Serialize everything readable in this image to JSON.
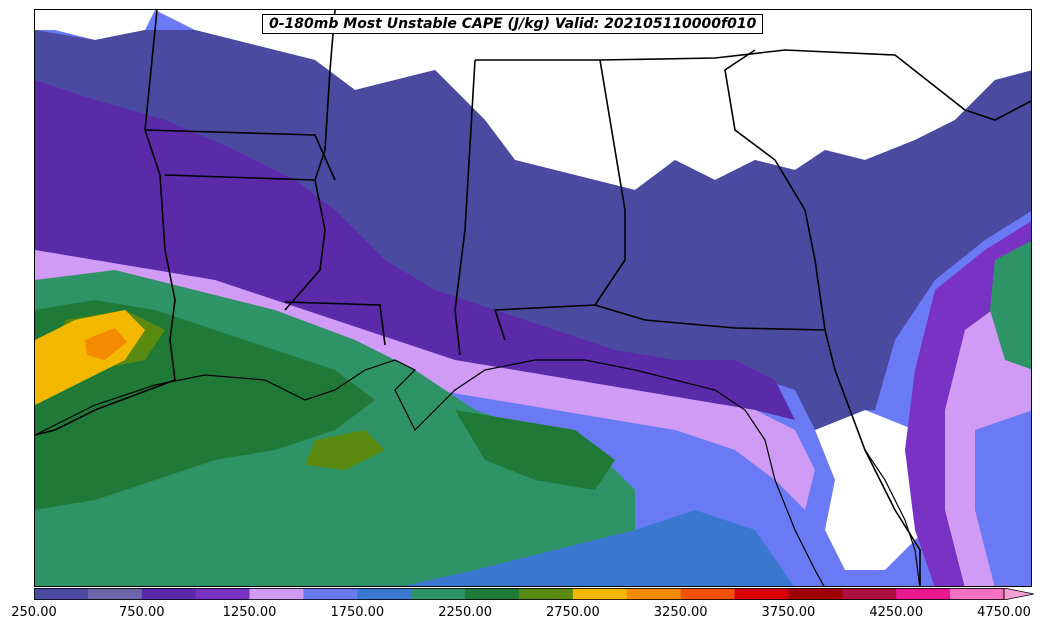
{
  "title": "0-180mb Most Unstable CAPE (J/kg) Valid: 202105110000f010",
  "colorbar": {
    "levels": [
      250,
      500,
      750,
      1000,
      1250,
      1500,
      1750,
      2000,
      2250,
      2500,
      2750,
      3000,
      3250,
      3500,
      3750,
      4000,
      4250,
      4500,
      4750
    ],
    "colors": [
      "#4a4aa0",
      "#6a66a8",
      "#5a2aa8",
      "#7a32c4",
      "#d09bf4",
      "#6a7af4",
      "#3a78d0",
      "#2e9468",
      "#1e7a36",
      "#5a8a10",
      "#f4b800",
      "#f48a00",
      "#f05000",
      "#d80000",
      "#a00000",
      "#b01040",
      "#e81890",
      "#f470c0"
    ],
    "extend_color": "#f4a0d0",
    "tick_labels": [
      "250.00",
      "750.00",
      "1250.00",
      "1750.00",
      "2250.00",
      "2750.00",
      "3250.00",
      "3750.00",
      "4250.00",
      "4750.00"
    ]
  }
}
